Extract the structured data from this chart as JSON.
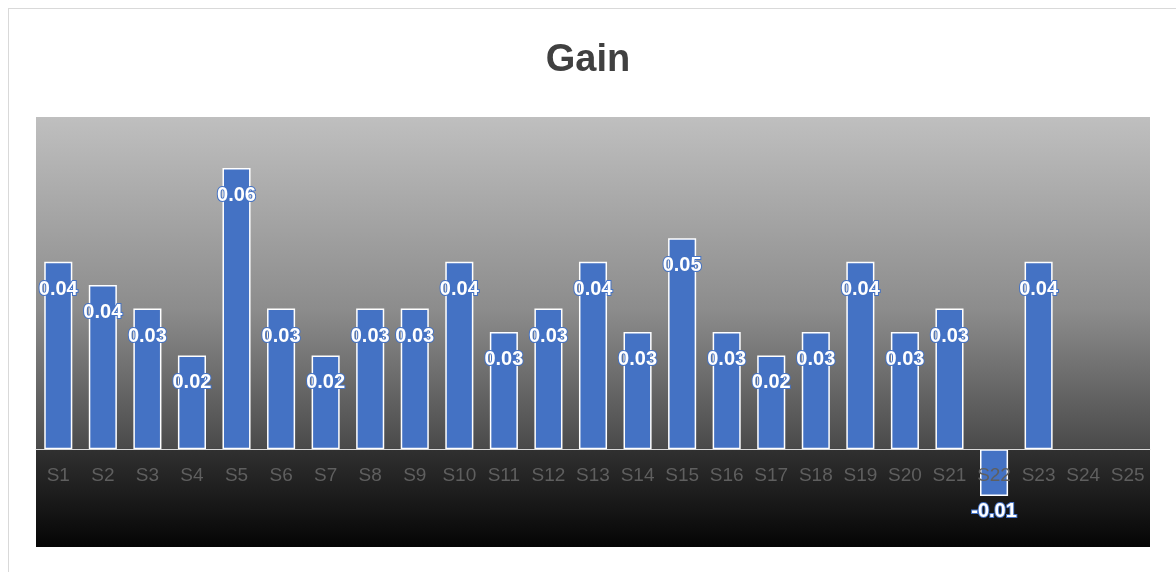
{
  "chart_data": {
    "type": "bar",
    "title": "Gain",
    "categories": [
      "S1",
      "S2",
      "S3",
      "S4",
      "S5",
      "S6",
      "S7",
      "S8",
      "S9",
      "S10",
      "S11",
      "S12",
      "S13",
      "S14",
      "S15",
      "S16",
      "S17",
      "S18",
      "S19",
      "S20",
      "S21",
      "S22",
      "S23",
      "S24",
      "S25"
    ],
    "values": [
      0.04,
      0.035,
      0.03,
      0.02,
      0.06,
      0.03,
      0.02,
      0.03,
      0.03,
      0.04,
      0.025,
      0.03,
      0.04,
      0.025,
      0.045,
      0.025,
      0.02,
      0.025,
      0.04,
      0.025,
      0.03,
      -0.01,
      0.04,
      null,
      null
    ],
    "value_labels": [
      "0.04",
      "0.04",
      "0.03",
      "0.02",
      "0.06",
      "0.03",
      "0.02",
      "0.03",
      "0.03",
      "0.04",
      "0.03",
      "0.03",
      "0.04",
      "0.03",
      "0.05",
      "0.03",
      "0.02",
      "0.03",
      "0.04",
      "0.03",
      "0.03",
      "-0.01",
      "0.04",
      null,
      null
    ],
    "color": "#4472c4",
    "tick_labels": "x"
  }
}
